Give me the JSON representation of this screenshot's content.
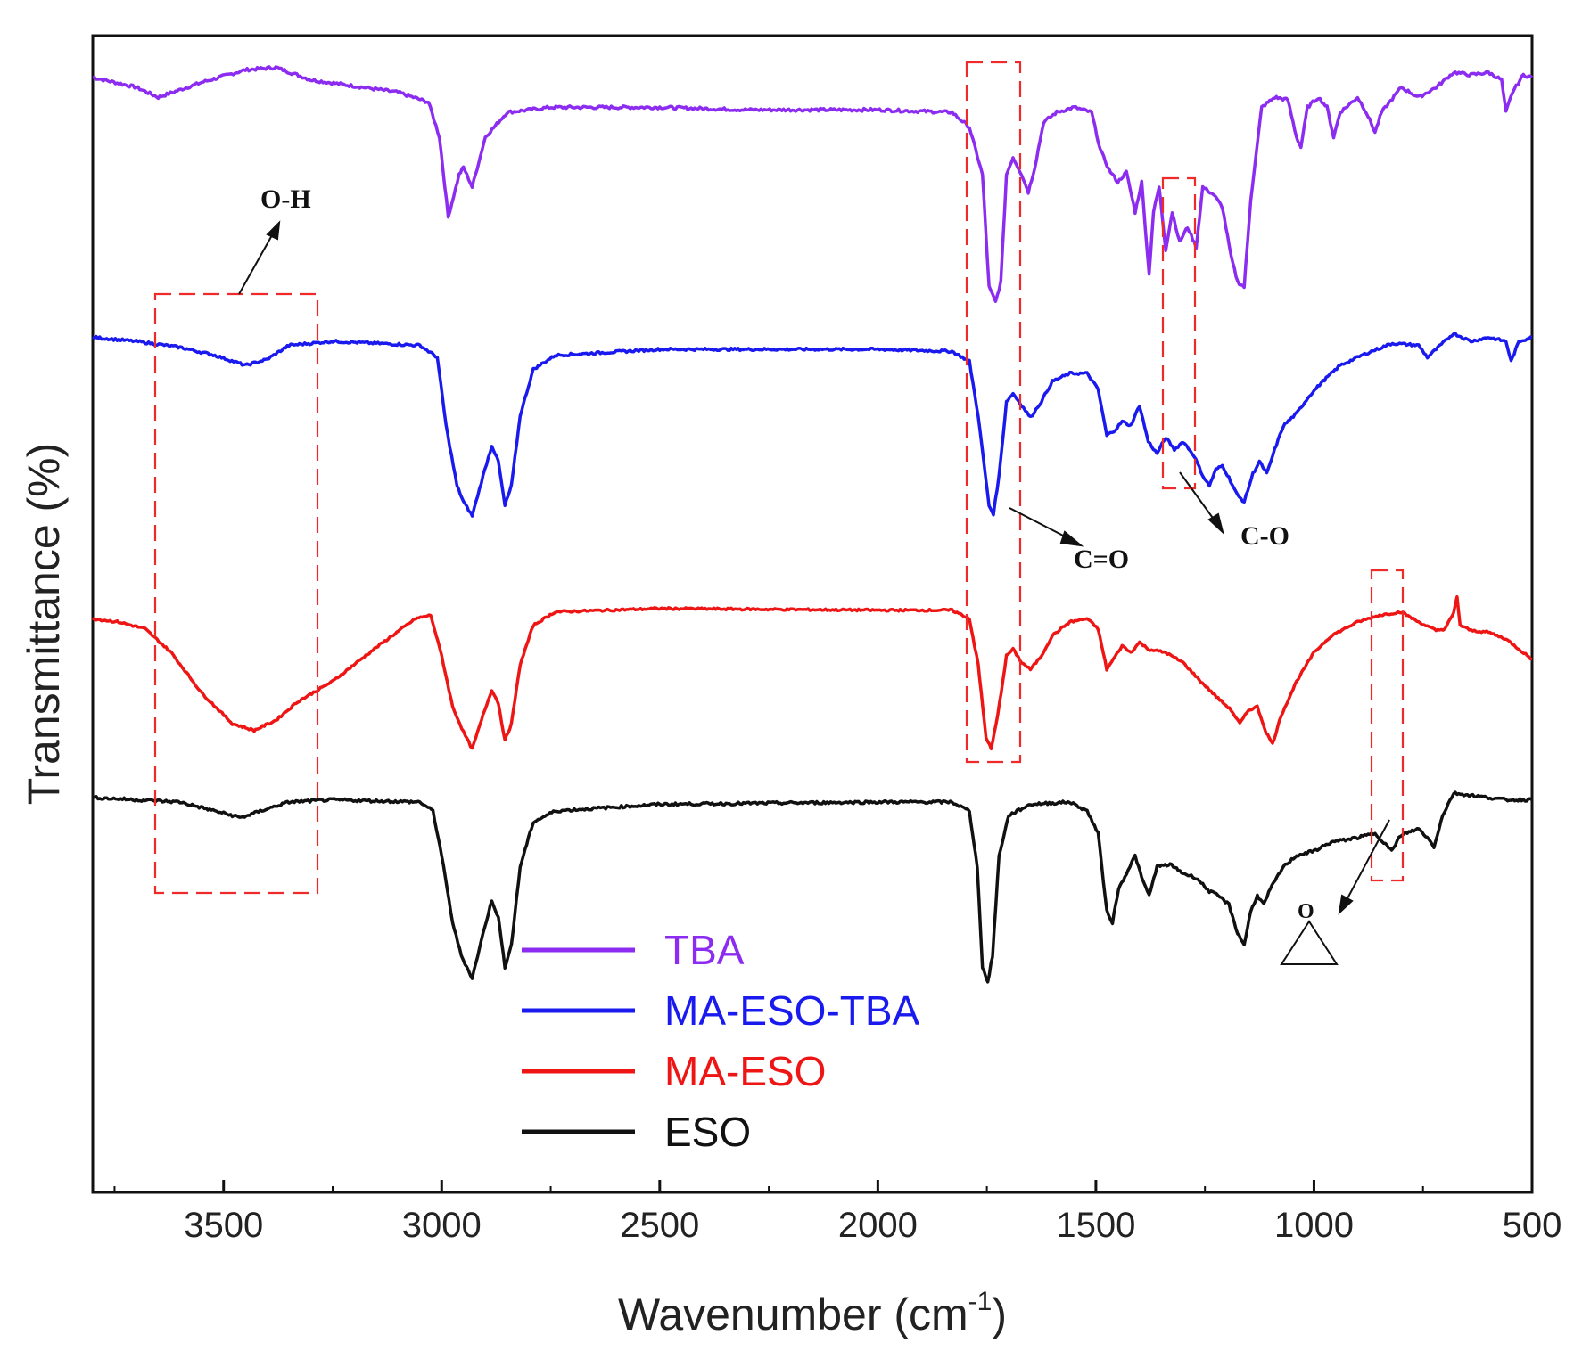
{
  "chart_data": {
    "type": "line",
    "title": "",
    "xlabel": "Wavenumber (cm",
    "xlabel_sup": "-1",
    "xlabel_close": ")",
    "ylabel": "Transmittance (%)",
    "xlim": [
      3800,
      500
    ],
    "x_reversed": true,
    "yaxis_ticks": false,
    "grid": false,
    "xticks": [
      "3500",
      "3000",
      "2500",
      "2000",
      "1500",
      "1000",
      "500"
    ],
    "xtick_values": [
      3500,
      3000,
      2500,
      2000,
      1500,
      1000,
      500
    ],
    "legend_position": "bottom-center",
    "series": [
      {
        "name": "TBA",
        "color": "#8b2cf0",
        "offset": 3,
        "points": [
          [
            3800,
            0.94
          ],
          [
            3700,
            0.9
          ],
          [
            3650,
            0.86
          ],
          [
            3550,
            0.92
          ],
          [
            3450,
            0.97
          ],
          [
            3380,
            0.98
          ],
          [
            3300,
            0.93
          ],
          [
            3100,
            0.88
          ],
          [
            3030,
            0.84
          ],
          [
            3005,
            0.7
          ],
          [
            2985,
            0.38
          ],
          [
            2960,
            0.55
          ],
          [
            2950,
            0.58
          ],
          [
            2930,
            0.5
          ],
          [
            2900,
            0.7
          ],
          [
            2850,
            0.8
          ],
          [
            2750,
            0.82
          ],
          [
            2500,
            0.82
          ],
          [
            2300,
            0.81
          ],
          [
            2000,
            0.81
          ],
          [
            1830,
            0.8
          ],
          [
            1790,
            0.74
          ],
          [
            1760,
            0.55
          ],
          [
            1745,
            0.1
          ],
          [
            1730,
            0.04
          ],
          [
            1718,
            0.12
          ],
          [
            1705,
            0.55
          ],
          [
            1690,
            0.62
          ],
          [
            1670,
            0.55
          ],
          [
            1655,
            0.48
          ],
          [
            1640,
            0.58
          ],
          [
            1620,
            0.76
          ],
          [
            1590,
            0.8
          ],
          [
            1550,
            0.82
          ],
          [
            1510,
            0.8
          ],
          [
            1490,
            0.65
          ],
          [
            1470,
            0.57
          ],
          [
            1450,
            0.52
          ],
          [
            1430,
            0.56
          ],
          [
            1410,
            0.4
          ],
          [
            1395,
            0.52
          ],
          [
            1378,
            0.15
          ],
          [
            1368,
            0.4
          ],
          [
            1355,
            0.5
          ],
          [
            1340,
            0.25
          ],
          [
            1325,
            0.4
          ],
          [
            1308,
            0.28
          ],
          [
            1290,
            0.34
          ],
          [
            1270,
            0.26
          ],
          [
            1255,
            0.5
          ],
          [
            1230,
            0.47
          ],
          [
            1210,
            0.42
          ],
          [
            1190,
            0.22
          ],
          [
            1175,
            0.12
          ],
          [
            1160,
            0.1
          ],
          [
            1145,
            0.45
          ],
          [
            1120,
            0.82
          ],
          [
            1090,
            0.86
          ],
          [
            1060,
            0.85
          ],
          [
            1040,
            0.7
          ],
          [
            1030,
            0.66
          ],
          [
            1015,
            0.82
          ],
          [
            990,
            0.86
          ],
          [
            970,
            0.82
          ],
          [
            955,
            0.7
          ],
          [
            940,
            0.8
          ],
          [
            900,
            0.86
          ],
          [
            880,
            0.8
          ],
          [
            860,
            0.72
          ],
          [
            845,
            0.8
          ],
          [
            800,
            0.9
          ],
          [
            760,
            0.86
          ],
          [
            720,
            0.9
          ],
          [
            680,
            0.96
          ],
          [
            640,
            0.95
          ],
          [
            600,
            0.96
          ],
          [
            570,
            0.93
          ],
          [
            560,
            0.8
          ],
          [
            545,
            0.88
          ],
          [
            520,
            0.95
          ],
          [
            500,
            0.94
          ]
        ]
      },
      {
        "name": "MA-ESO-TBA",
        "color": "#1a1aee",
        "offset": 2,
        "points": [
          [
            3800,
            0.94
          ],
          [
            3700,
            0.92
          ],
          [
            3600,
            0.89
          ],
          [
            3520,
            0.85
          ],
          [
            3450,
            0.8
          ],
          [
            3400,
            0.83
          ],
          [
            3350,
            0.9
          ],
          [
            3250,
            0.92
          ],
          [
            3050,
            0.9
          ],
          [
            3010,
            0.84
          ],
          [
            2990,
            0.5
          ],
          [
            2965,
            0.2
          ],
          [
            2950,
            0.12
          ],
          [
            2930,
            0.05
          ],
          [
            2905,
            0.25
          ],
          [
            2885,
            0.4
          ],
          [
            2870,
            0.32
          ],
          [
            2855,
            0.1
          ],
          [
            2840,
            0.2
          ],
          [
            2820,
            0.55
          ],
          [
            2790,
            0.78
          ],
          [
            2740,
            0.85
          ],
          [
            2500,
            0.88
          ],
          [
            2000,
            0.88
          ],
          [
            1830,
            0.87
          ],
          [
            1790,
            0.82
          ],
          [
            1770,
            0.55
          ],
          [
            1745,
            0.1
          ],
          [
            1735,
            0.06
          ],
          [
            1722,
            0.25
          ],
          [
            1705,
            0.62
          ],
          [
            1690,
            0.66
          ],
          [
            1670,
            0.6
          ],
          [
            1650,
            0.54
          ],
          [
            1625,
            0.62
          ],
          [
            1600,
            0.72
          ],
          [
            1560,
            0.76
          ],
          [
            1520,
            0.76
          ],
          [
            1495,
            0.68
          ],
          [
            1475,
            0.45
          ],
          [
            1455,
            0.48
          ],
          [
            1440,
            0.52
          ],
          [
            1420,
            0.5
          ],
          [
            1400,
            0.6
          ],
          [
            1380,
            0.42
          ],
          [
            1360,
            0.36
          ],
          [
            1340,
            0.44
          ],
          [
            1320,
            0.38
          ],
          [
            1300,
            0.42
          ],
          [
            1275,
            0.35
          ],
          [
            1255,
            0.25
          ],
          [
            1240,
            0.2
          ],
          [
            1225,
            0.28
          ],
          [
            1210,
            0.3
          ],
          [
            1195,
            0.24
          ],
          [
            1175,
            0.15
          ],
          [
            1160,
            0.12
          ],
          [
            1140,
            0.26
          ],
          [
            1125,
            0.32
          ],
          [
            1108,
            0.26
          ],
          [
            1090,
            0.38
          ],
          [
            1070,
            0.5
          ],
          [
            1040,
            0.56
          ],
          [
            1010,
            0.65
          ],
          [
            980,
            0.72
          ],
          [
            940,
            0.8
          ],
          [
            880,
            0.86
          ],
          [
            820,
            0.91
          ],
          [
            760,
            0.9
          ],
          [
            740,
            0.84
          ],
          [
            720,
            0.88
          ],
          [
            680,
            0.96
          ],
          [
            640,
            0.92
          ],
          [
            600,
            0.94
          ],
          [
            560,
            0.92
          ],
          [
            548,
            0.82
          ],
          [
            530,
            0.92
          ],
          [
            500,
            0.94
          ]
        ]
      },
      {
        "name": "MA-ESO",
        "color": "#ee1515",
        "offset": 1,
        "points": [
          [
            3800,
            0.82
          ],
          [
            3740,
            0.8
          ],
          [
            3680,
            0.76
          ],
          [
            3620,
            0.62
          ],
          [
            3550,
            0.38
          ],
          [
            3480,
            0.2
          ],
          [
            3430,
            0.16
          ],
          [
            3380,
            0.22
          ],
          [
            3330,
            0.33
          ],
          [
            3250,
            0.45
          ],
          [
            3150,
            0.65
          ],
          [
            3060,
            0.82
          ],
          [
            3025,
            0.84
          ],
          [
            3000,
            0.6
          ],
          [
            2975,
            0.3
          ],
          [
            2950,
            0.15
          ],
          [
            2930,
            0.05
          ],
          [
            2905,
            0.25
          ],
          [
            2885,
            0.4
          ],
          [
            2870,
            0.32
          ],
          [
            2855,
            0.1
          ],
          [
            2840,
            0.2
          ],
          [
            2820,
            0.55
          ],
          [
            2790,
            0.78
          ],
          [
            2740,
            0.86
          ],
          [
            2500,
            0.88
          ],
          [
            2000,
            0.87
          ],
          [
            1830,
            0.87
          ],
          [
            1790,
            0.82
          ],
          [
            1770,
            0.55
          ],
          [
            1752,
            0.12
          ],
          [
            1740,
            0.05
          ],
          [
            1725,
            0.25
          ],
          [
            1705,
            0.6
          ],
          [
            1690,
            0.64
          ],
          [
            1670,
            0.56
          ],
          [
            1650,
            0.52
          ],
          [
            1625,
            0.6
          ],
          [
            1600,
            0.72
          ],
          [
            1560,
            0.8
          ],
          [
            1520,
            0.82
          ],
          [
            1495,
            0.76
          ],
          [
            1475,
            0.52
          ],
          [
            1460,
            0.58
          ],
          [
            1440,
            0.66
          ],
          [
            1420,
            0.62
          ],
          [
            1400,
            0.68
          ],
          [
            1380,
            0.64
          ],
          [
            1340,
            0.62
          ],
          [
            1300,
            0.56
          ],
          [
            1260,
            0.45
          ],
          [
            1220,
            0.35
          ],
          [
            1190,
            0.28
          ],
          [
            1170,
            0.2
          ],
          [
            1150,
            0.28
          ],
          [
            1130,
            0.3
          ],
          [
            1110,
            0.15
          ],
          [
            1095,
            0.08
          ],
          [
            1075,
            0.25
          ],
          [
            1040,
            0.45
          ],
          [
            1000,
            0.62
          ],
          [
            960,
            0.72
          ],
          [
            900,
            0.8
          ],
          [
            850,
            0.84
          ],
          [
            800,
            0.86
          ],
          [
            760,
            0.8
          ],
          [
            720,
            0.75
          ],
          [
            700,
            0.76
          ],
          [
            680,
            0.85
          ],
          [
            672,
            0.95
          ],
          [
            665,
            0.78
          ],
          [
            640,
            0.75
          ],
          [
            600,
            0.74
          ],
          [
            560,
            0.7
          ],
          [
            530,
            0.64
          ],
          [
            500,
            0.58
          ]
        ]
      },
      {
        "name": "ESO",
        "color": "#111111",
        "offset": 0,
        "points": [
          [
            3800,
            0.86
          ],
          [
            3700,
            0.85
          ],
          [
            3600,
            0.84
          ],
          [
            3520,
            0.8
          ],
          [
            3460,
            0.77
          ],
          [
            3400,
            0.81
          ],
          [
            3350,
            0.84
          ],
          [
            3250,
            0.85
          ],
          [
            3050,
            0.84
          ],
          [
            3020,
            0.8
          ],
          [
            3000,
            0.6
          ],
          [
            2975,
            0.3
          ],
          [
            2955,
            0.15
          ],
          [
            2930,
            0.05
          ],
          [
            2905,
            0.25
          ],
          [
            2885,
            0.4
          ],
          [
            2870,
            0.32
          ],
          [
            2855,
            0.1
          ],
          [
            2840,
            0.2
          ],
          [
            2820,
            0.55
          ],
          [
            2790,
            0.75
          ],
          [
            2740,
            0.8
          ],
          [
            2500,
            0.83
          ],
          [
            2000,
            0.84
          ],
          [
            1830,
            0.84
          ],
          [
            1790,
            0.8
          ],
          [
            1772,
            0.55
          ],
          [
            1760,
            0.1
          ],
          [
            1748,
            0.03
          ],
          [
            1737,
            0.15
          ],
          [
            1722,
            0.6
          ],
          [
            1700,
            0.78
          ],
          [
            1650,
            0.83
          ],
          [
            1560,
            0.84
          ],
          [
            1520,
            0.8
          ],
          [
            1495,
            0.7
          ],
          [
            1475,
            0.35
          ],
          [
            1462,
            0.3
          ],
          [
            1448,
            0.45
          ],
          [
            1430,
            0.52
          ],
          [
            1410,
            0.6
          ],
          [
            1395,
            0.5
          ],
          [
            1378,
            0.42
          ],
          [
            1360,
            0.55
          ],
          [
            1330,
            0.56
          ],
          [
            1300,
            0.52
          ],
          [
            1270,
            0.5
          ],
          [
            1240,
            0.44
          ],
          [
            1220,
            0.42
          ],
          [
            1195,
            0.38
          ],
          [
            1175,
            0.25
          ],
          [
            1160,
            0.2
          ],
          [
            1145,
            0.35
          ],
          [
            1130,
            0.42
          ],
          [
            1115,
            0.38
          ],
          [
            1100,
            0.45
          ],
          [
            1070,
            0.55
          ],
          [
            1040,
            0.6
          ],
          [
            1000,
            0.62
          ],
          [
            960,
            0.66
          ],
          [
            900,
            0.68
          ],
          [
            860,
            0.7
          ],
          [
            840,
            0.66
          ],
          [
            822,
            0.62
          ],
          [
            805,
            0.68
          ],
          [
            790,
            0.7
          ],
          [
            760,
            0.72
          ],
          [
            740,
            0.68
          ],
          [
            725,
            0.64
          ],
          [
            705,
            0.78
          ],
          [
            680,
            0.88
          ],
          [
            640,
            0.87
          ],
          [
            600,
            0.86
          ],
          [
            560,
            0.85
          ],
          [
            520,
            0.85
          ],
          [
            500,
            0.85
          ]
        ]
      }
    ],
    "annotations": {
      "oh_label": "O-H",
      "co_double_label": "C=O",
      "co_single_label": "C-O",
      "epoxide_label": "O"
    }
  }
}
